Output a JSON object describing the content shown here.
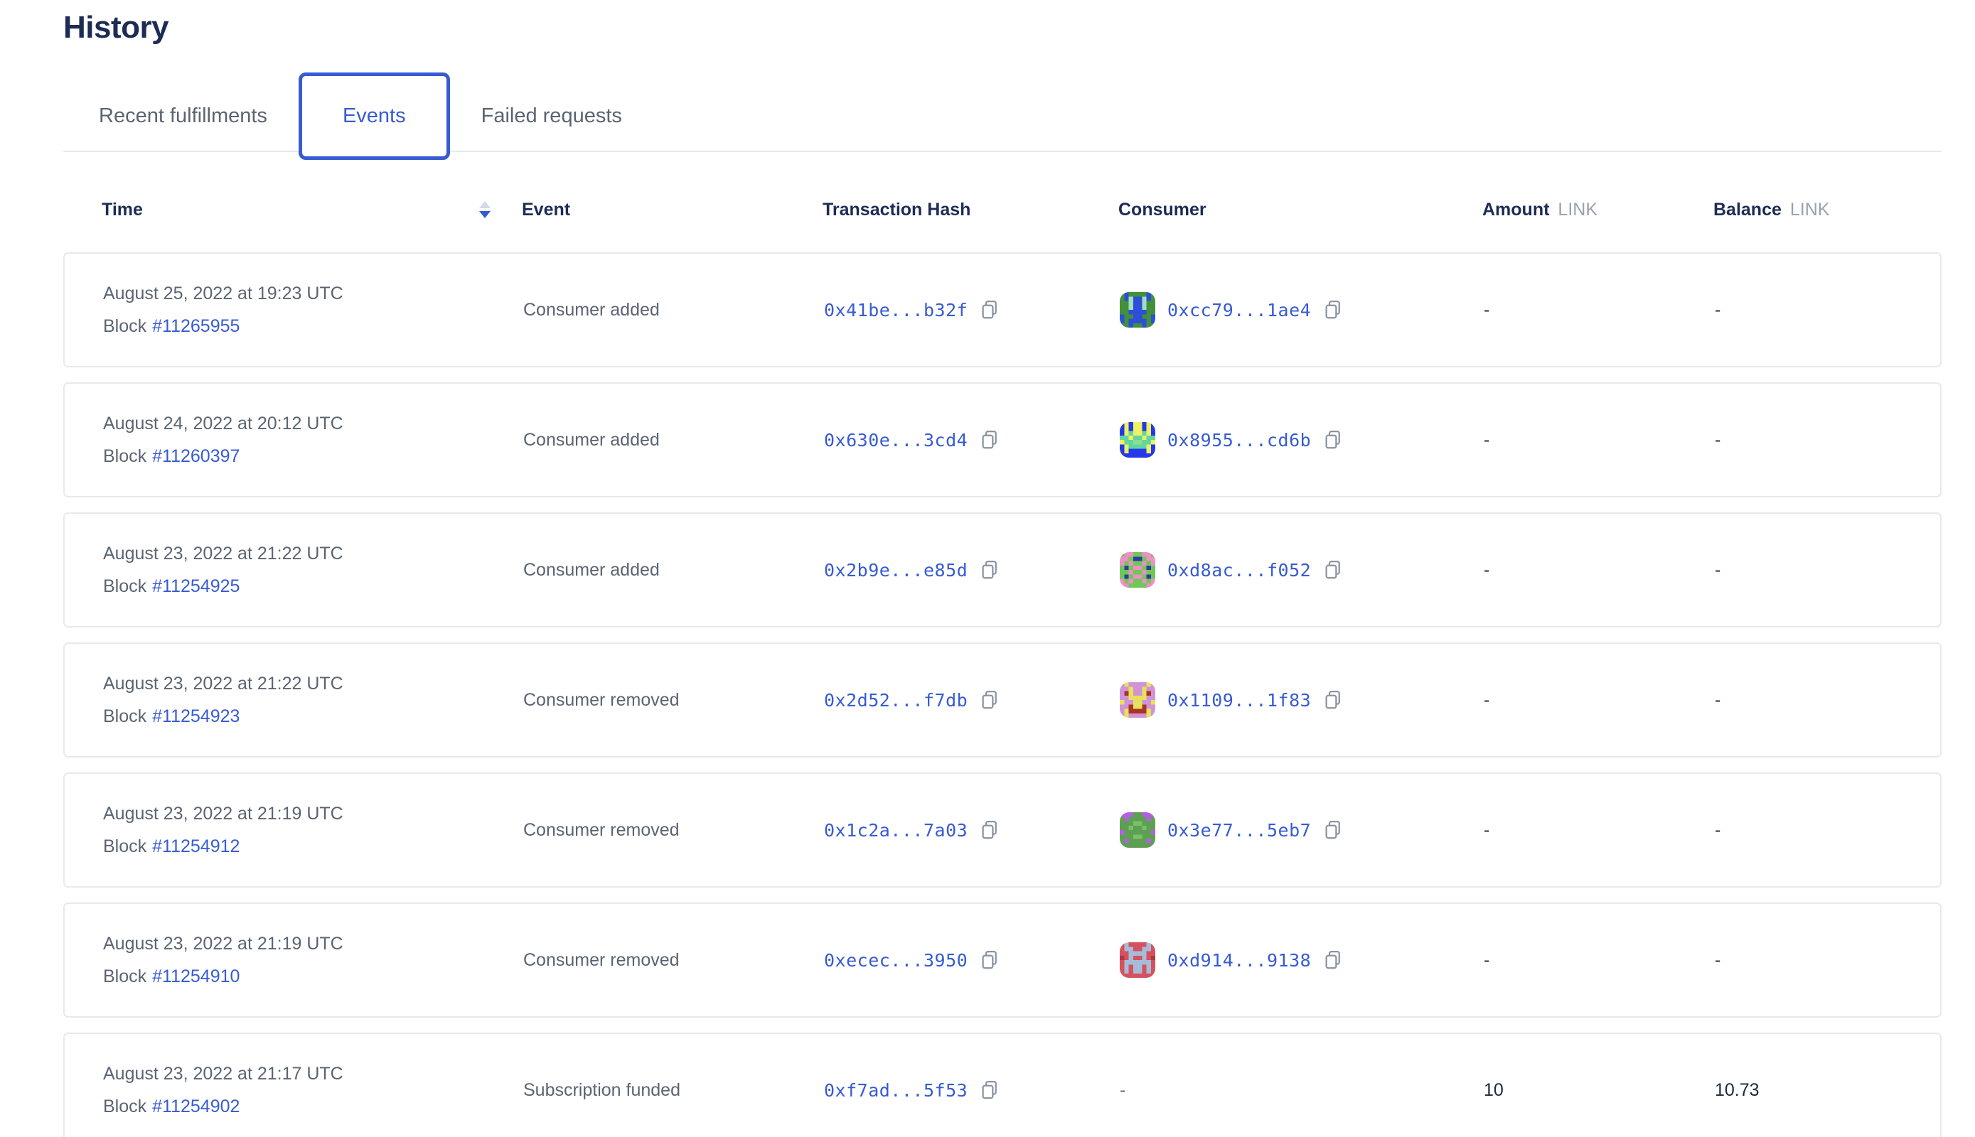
{
  "page": {
    "title": "History"
  },
  "tabs": [
    {
      "label": "Recent fulfillments",
      "active": false
    },
    {
      "label": "Events",
      "active": true
    },
    {
      "label": "Failed requests",
      "active": false
    }
  ],
  "table": {
    "block_prefix": "Block",
    "columns": {
      "time": "Time",
      "event": "Event",
      "tx": "Transaction Hash",
      "consumer": "Consumer",
      "amount": "Amount",
      "amount_unit": "LINK",
      "balance": "Balance",
      "balance_unit": "LINK"
    },
    "sort": {
      "column": "Time",
      "direction": "descending"
    },
    "rows": [
      {
        "date": "August 25, 2022 at 19:23 UTC",
        "block": "#11265955",
        "event": "Consumer added",
        "tx": "0x41be...b32f",
        "consumer": "0xcc79...1ae4",
        "avatar": 0,
        "amount": "-",
        "balance": "-"
      },
      {
        "date": "August 24, 2022 at 20:12 UTC",
        "block": "#11260397",
        "event": "Consumer added",
        "tx": "0x630e...3cd4",
        "consumer": "0x8955...cd6b",
        "avatar": 1,
        "amount": "-",
        "balance": "-"
      },
      {
        "date": "August 23, 2022 at 21:22 UTC",
        "block": "#11254925",
        "event": "Consumer added",
        "tx": "0x2b9e...e85d",
        "consumer": "0xd8ac...f052",
        "avatar": 2,
        "amount": "-",
        "balance": "-"
      },
      {
        "date": "August 23, 2022 at 21:22 UTC",
        "block": "#11254923",
        "event": "Consumer removed",
        "tx": "0x2d52...f7db",
        "consumer": "0x1109...1f83",
        "avatar": 3,
        "amount": "-",
        "balance": "-"
      },
      {
        "date": "August 23, 2022 at 21:19 UTC",
        "block": "#11254912",
        "event": "Consumer removed",
        "tx": "0x1c2a...7a03",
        "consumer": "0x3e77...5eb7",
        "avatar": 4,
        "amount": "-",
        "balance": "-"
      },
      {
        "date": "August 23, 2022 at 21:19 UTC",
        "block": "#11254910",
        "event": "Consumer removed",
        "tx": "0xecec...3950",
        "consumer": "0xd914...9138",
        "avatar": 5,
        "amount": "-",
        "balance": "-"
      },
      {
        "date": "August 23, 2022 at 21:17 UTC",
        "block": "#11254902",
        "event": "Subscription funded",
        "tx": "0xf7ad...5f53",
        "consumer": "-",
        "avatar": null,
        "amount": "10",
        "balance": "10.73"
      }
    ]
  },
  "avatars": [
    {
      "name": "identicon-green-blue",
      "palette": {
        "g": "#43903b",
        "b": "#2b4fd6",
        "m": "#a4dcc0"
      },
      "grid": [
        "gbggggbg",
        "gbmbbmbg",
        "ggmbbmgg",
        "ggmbbmgg",
        "ggbbbbgg",
        "bggbbggb",
        "bgbbbbgb",
        "ggbggbgg"
      ]
    },
    {
      "name": "identicon-blue-yellow",
      "palette": {
        "b": "#2438ea",
        "y": "#eff062",
        "t": "#60d6a2",
        "g": "#8ce08a"
      },
      "grid": [
        "bybyybyb",
        "bybyybyb",
        "bytyytyb",
        "ttyttytt",
        "yttggtty",
        "bytttty b",
        "bybbbbyb",
        "bbbbbbbb"
      ]
    },
    {
      "name": "identicon-green-pink",
      "palette": {
        "g": "#6ec757",
        "p": "#ee8fc6",
        "n": "#2d3ca0"
      },
      "grid": [
        "gppggppg",
        "ppgnngpp",
        "pgpggpgp",
        "gngppgng",
        "ggpggpgg",
        "gngppgng",
        "pgpggpgp",
        "ppggggpp"
      ]
    },
    {
      "name": "identicon-plum-yellow",
      "palette": {
        "l": "#d093d8",
        "y": "#e7e15d",
        "r": "#aa3422"
      },
      "grid": [
        "lyllllyl",
        "llyllyll",
        "lryllyrl",
        "llyyyyll",
        "yllyylly",
        "llryyrll",
        "lyrrrryl",
        "lyllllyl"
      ]
    },
    {
      "name": "identicon-green-purple",
      "palette": {
        "g": "#5da053",
        "p": "#b45fe2",
        "h": "#79c167"
      },
      "grid": [
        "pppggppp",
        "gpggggpg",
        "ggghhggg",
        "gghgghgg",
        "pggggggp",
        "ggghhggg",
        "gpggggpg",
        "gggggggg"
      ]
    },
    {
      "name": "identicon-red-steel",
      "palette": {
        "r": "#d5515d",
        "s": "#a7bcd9",
        "d": "#b23543"
      },
      "grid": [
        "rsrrrrsr",
        "rssrrssr",
        "rrssssrr",
        "drsrrsrd",
        "rssssssr",
        "rsrssrsr",
        "rsrssrsr",
        "rrrrrrrr"
      ]
    }
  ],
  "colors": {
    "brand_blue": "#375bd2",
    "heading_navy": "#1d2c55",
    "text_gray": "#5b6472",
    "unit_gray": "#9aa2ae",
    "border_gray": "#e7e9ee",
    "value_dark": "#1b2940"
  }
}
